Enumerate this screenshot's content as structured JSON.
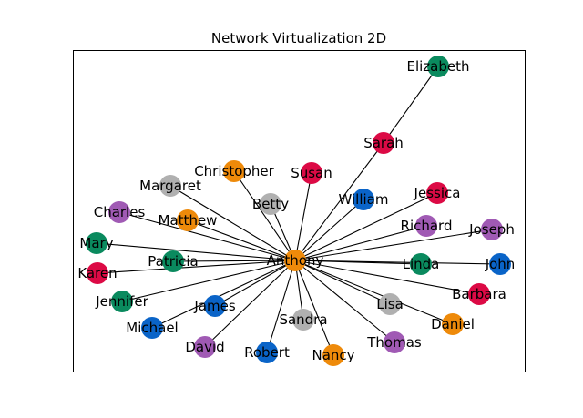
{
  "title": "Network Virtualization 2D",
  "colors": {
    "green": "#0a8a5e",
    "crimson": "#dc0a45",
    "orange": "#ee8a0a",
    "gray": "#b0b0b0",
    "blue": "#0a64c8",
    "purple": "#a05ab4"
  },
  "nodes": [
    {
      "id": "Anthony",
      "color": "orange"
    },
    {
      "id": "Elizabeth",
      "color": "green"
    },
    {
      "id": "Sarah",
      "color": "crimson"
    },
    {
      "id": "Christopher",
      "color": "orange"
    },
    {
      "id": "Susan",
      "color": "crimson"
    },
    {
      "id": "Margaret",
      "color": "gray"
    },
    {
      "id": "Betty",
      "color": "gray"
    },
    {
      "id": "William",
      "color": "blue"
    },
    {
      "id": "Jessica",
      "color": "crimson"
    },
    {
      "id": "Charles",
      "color": "purple"
    },
    {
      "id": "Matthew",
      "color": "orange"
    },
    {
      "id": "Richard",
      "color": "purple"
    },
    {
      "id": "Joseph",
      "color": "purple"
    },
    {
      "id": "Mary",
      "color": "green"
    },
    {
      "id": "Patricia",
      "color": "green"
    },
    {
      "id": "Linda",
      "color": "green"
    },
    {
      "id": "John",
      "color": "blue"
    },
    {
      "id": "Karen",
      "color": "crimson"
    },
    {
      "id": "Barbara",
      "color": "crimson"
    },
    {
      "id": "Jennifer",
      "color": "green"
    },
    {
      "id": "James",
      "color": "blue"
    },
    {
      "id": "Lisa",
      "color": "gray"
    },
    {
      "id": "Sandra",
      "color": "gray"
    },
    {
      "id": "Daniel",
      "color": "orange"
    },
    {
      "id": "Michael",
      "color": "blue"
    },
    {
      "id": "Thomas",
      "color": "purple"
    },
    {
      "id": "David",
      "color": "purple"
    },
    {
      "id": "Robert",
      "color": "blue"
    },
    {
      "id": "Nancy",
      "color": "orange"
    }
  ],
  "edges": [
    [
      "Anthony",
      "Sarah"
    ],
    [
      "Sarah",
      "Elizabeth"
    ],
    [
      "Anthony",
      "Christopher"
    ],
    [
      "Anthony",
      "Susan"
    ],
    [
      "Anthony",
      "Margaret"
    ],
    [
      "Anthony",
      "Betty"
    ],
    [
      "Anthony",
      "William"
    ],
    [
      "Anthony",
      "Jessica"
    ],
    [
      "Anthony",
      "Charles"
    ],
    [
      "Anthony",
      "Matthew"
    ],
    [
      "Anthony",
      "Richard"
    ],
    [
      "Anthony",
      "Joseph"
    ],
    [
      "Anthony",
      "Mary"
    ],
    [
      "Anthony",
      "Patricia"
    ],
    [
      "Anthony",
      "Linda"
    ],
    [
      "Anthony",
      "John"
    ],
    [
      "Anthony",
      "Karen"
    ],
    [
      "Anthony",
      "Barbara"
    ],
    [
      "Anthony",
      "Jennifer"
    ],
    [
      "Anthony",
      "James"
    ],
    [
      "Anthony",
      "Lisa"
    ],
    [
      "Anthony",
      "Sandra"
    ],
    [
      "Anthony",
      "Daniel"
    ],
    [
      "Anthony",
      "Michael"
    ],
    [
      "Anthony",
      "Thomas"
    ],
    [
      "Anthony",
      "David"
    ],
    [
      "Anthony",
      "Robert"
    ],
    [
      "Anthony",
      "Nancy"
    ]
  ]
}
